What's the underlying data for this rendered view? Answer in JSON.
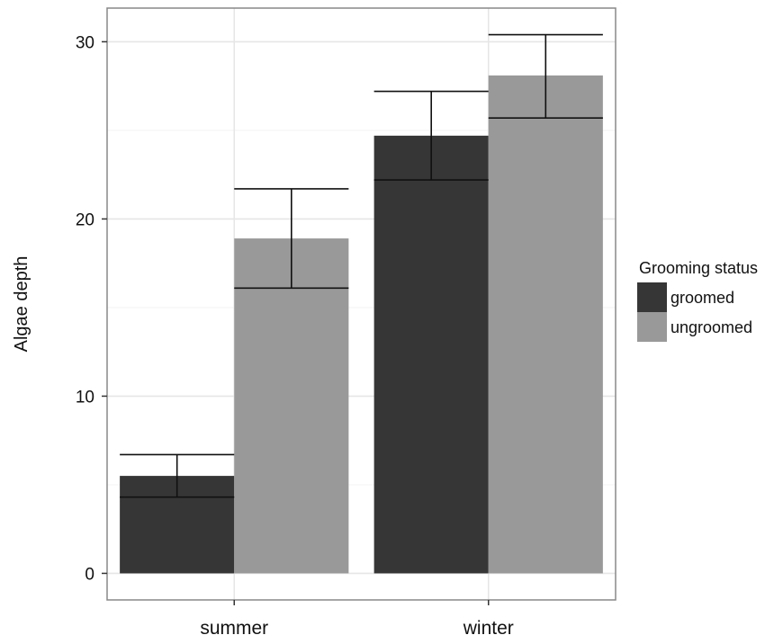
{
  "chart_data": {
    "type": "bar",
    "title": "",
    "xlabel": "",
    "ylabel": "Algae depth",
    "categories": [
      "summer",
      "winter"
    ],
    "series": [
      {
        "name": "groomed",
        "color": "#363636",
        "values": [
          5.5,
          24.7
        ],
        "err_low": [
          4.3,
          22.2
        ],
        "err_high": [
          6.7,
          27.2
        ]
      },
      {
        "name": "ungroomed",
        "color": "#999999",
        "values": [
          18.9,
          28.1
        ],
        "err_low": [
          16.1,
          25.7
        ],
        "err_high": [
          21.7,
          30.4
        ]
      }
    ],
    "ylim": [
      -1.5,
      31.9
    ],
    "yticks": [
      0,
      10,
      20,
      30
    ],
    "ytick_labels": [
      "0",
      "10",
      "20",
      "30"
    ],
    "grid": true,
    "legend": {
      "title": "Grooming status",
      "placement": "right"
    }
  }
}
